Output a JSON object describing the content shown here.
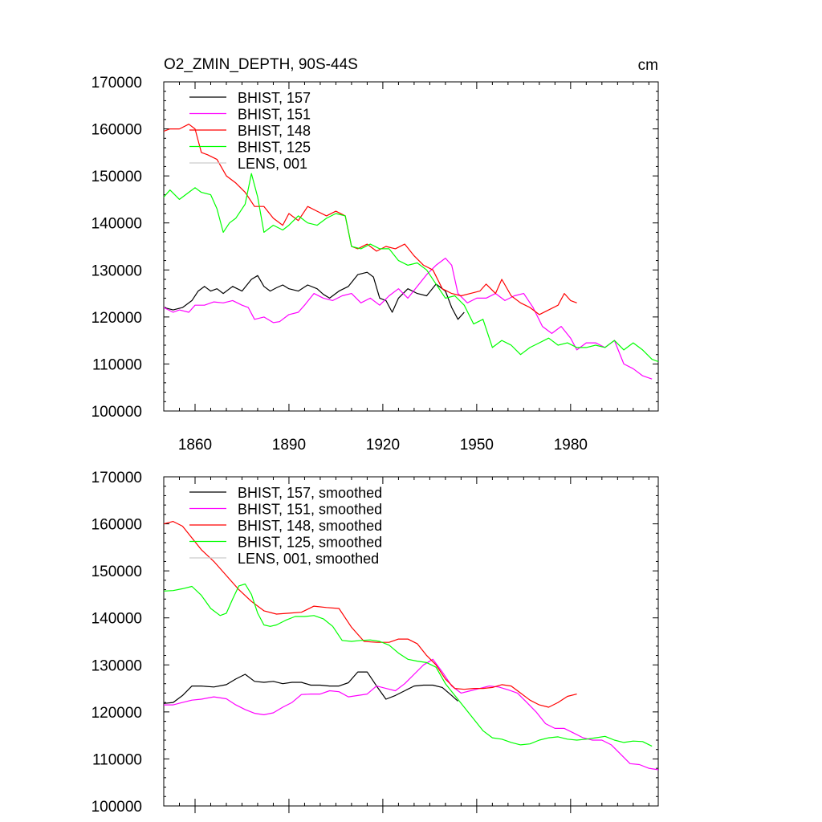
{
  "chart_data": [
    {
      "type": "line",
      "title": "O2_ZMIN_DEPTH, 90S-44S",
      "units": "cm",
      "xlim": [
        1850,
        2008
      ],
      "ylim": [
        100000,
        170000
      ],
      "yticks": [
        100000,
        110000,
        120000,
        130000,
        140000,
        150000,
        160000,
        170000
      ],
      "ytick_labels": [
        "100000",
        "110000",
        "120000",
        "130000",
        "140000",
        "150000",
        "160000",
        "170000"
      ],
      "xticks": [
        1860,
        1890,
        1920,
        1950,
        1980
      ],
      "xtick_labels": [
        "1860",
        "1890",
        "1920",
        "1950",
        "1980"
      ],
      "series": [
        {
          "name": "BHIST, 157",
          "color": "#000000",
          "x": [
            1850,
            1853,
            1856,
            1859,
            1861,
            1863,
            1865,
            1867,
            1869,
            1872,
            1875,
            1878,
            1880,
            1882,
            1884,
            1886,
            1888,
            1890,
            1893,
            1896,
            1899,
            1901,
            1903,
            1906,
            1909,
            1912,
            1915,
            1917,
            1919,
            1921,
            1923,
            1925,
            1928,
            1931,
            1934,
            1937,
            1940,
            1942,
            1944,
            1946
          ],
          "y": [
            122000,
            121500,
            122000,
            123500,
            125500,
            126500,
            125500,
            126000,
            125000,
            126500,
            125500,
            128000,
            128800,
            126500,
            125500,
            126200,
            126800,
            126000,
            125500,
            126800,
            126000,
            124800,
            124000,
            125500,
            126500,
            129000,
            129500,
            128500,
            124000,
            123500,
            121000,
            124000,
            126000,
            125000,
            124500,
            127000,
            125500,
            122000,
            119500,
            121000
          ]
        },
        {
          "name": "BHIST, 151",
          "color": "#ff00ff",
          "x": [
            1850,
            1853,
            1855,
            1858,
            1860,
            1863,
            1866,
            1869,
            1872,
            1875,
            1877,
            1879,
            1882,
            1885,
            1887,
            1890,
            1893,
            1895,
            1898,
            1901,
            1904,
            1907,
            1910,
            1913,
            1916,
            1919,
            1922,
            1925,
            1928,
            1931,
            1934,
            1937,
            1940,
            1942,
            1944,
            1947,
            1950,
            1953,
            1956,
            1959,
            1962,
            1965,
            1968,
            1971,
            1974,
            1977,
            1980,
            1982,
            1985,
            1988,
            1991,
            1994,
            1997,
            2000,
            2003,
            2006
          ],
          "y": [
            122000,
            121000,
            121500,
            121000,
            122500,
            122500,
            123200,
            123000,
            123500,
            122500,
            122000,
            119500,
            120000,
            118800,
            119000,
            120500,
            121000,
            122500,
            125000,
            124000,
            123500,
            124500,
            125000,
            123000,
            124000,
            122500,
            124500,
            126000,
            124000,
            126500,
            129000,
            131000,
            132500,
            131000,
            125000,
            123000,
            124000,
            124000,
            125000,
            123500,
            124500,
            125000,
            122000,
            118000,
            116500,
            118000,
            115500,
            113000,
            114500,
            114500,
            113500,
            115000,
            110000,
            109000,
            107500,
            106800
          ]
        },
        {
          "name": "BHIST, 148",
          "color": "#ff0000",
          "x": [
            1850,
            1852,
            1855,
            1858,
            1860,
            1862,
            1864,
            1867,
            1870,
            1873,
            1876,
            1879,
            1882,
            1885,
            1888,
            1890,
            1893,
            1896,
            1899,
            1902,
            1905,
            1908,
            1910,
            1912,
            1915,
            1918,
            1921,
            1924,
            1927,
            1930,
            1933,
            1936,
            1939,
            1942,
            1945,
            1948,
            1951,
            1953,
            1956,
            1958,
            1961,
            1964,
            1967,
            1970,
            1973,
            1976,
            1978,
            1980,
            1982
          ],
          "y": [
            159500,
            160000,
            160000,
            161000,
            160000,
            155000,
            154500,
            153500,
            150000,
            148500,
            146500,
            143500,
            143500,
            141000,
            139500,
            142000,
            140500,
            143500,
            142500,
            141500,
            142500,
            141500,
            135000,
            134500,
            135500,
            134000,
            135000,
            134500,
            135500,
            133000,
            131000,
            130000,
            126000,
            125000,
            124500,
            125000,
            125500,
            127000,
            125000,
            128000,
            124500,
            123000,
            122000,
            120500,
            121500,
            122500,
            125000,
            123500,
            123000
          ]
        },
        {
          "name": "BHIST, 125",
          "color": "#00ff00",
          "x": [
            1850,
            1852,
            1855,
            1858,
            1860,
            1862,
            1865,
            1867,
            1869,
            1871,
            1873,
            1876,
            1878,
            1880,
            1882,
            1885,
            1888,
            1890,
            1893,
            1896,
            1899,
            1902,
            1905,
            1908,
            1910,
            1913,
            1916,
            1919,
            1922,
            1925,
            1928,
            1931,
            1934,
            1937,
            1940,
            1943,
            1946,
            1949,
            1952,
            1955,
            1958,
            1961,
            1964,
            1967,
            1970,
            1973,
            1976,
            1979,
            1982,
            1985,
            1988,
            1991,
            1994,
            1997,
            2000,
            2003,
            2006,
            2008
          ],
          "y": [
            145500,
            147000,
            145000,
            146500,
            147500,
            146500,
            146000,
            143000,
            138000,
            140000,
            141000,
            144000,
            150500,
            145500,
            138000,
            139500,
            138500,
            139500,
            141500,
            140000,
            139500,
            141000,
            142000,
            141500,
            135000,
            134500,
            135500,
            134500,
            134500,
            132000,
            131000,
            131500,
            130000,
            127000,
            124000,
            124500,
            122500,
            118500,
            119500,
            113500,
            115000,
            114000,
            112000,
            113500,
            114500,
            115500,
            114000,
            114500,
            113500,
            113500,
            114000,
            113500,
            115000,
            113000,
            114500,
            113000,
            111000,
            110500
          ]
        }
      ]
    },
    {
      "type": "line",
      "title": "",
      "xlim": [
        1850,
        2008
      ],
      "ylim": [
        100000,
        170000
      ],
      "yticks": [
        100000,
        110000,
        120000,
        130000,
        140000,
        150000,
        160000,
        170000
      ],
      "ytick_labels": [
        "100000",
        "110000",
        "120000",
        "130000",
        "140000",
        "150000",
        "160000",
        "170000"
      ],
      "xticks": [
        1860,
        1890,
        1920,
        1950,
        1980
      ],
      "series": [
        {
          "name": "BHIST, 157, smoothed",
          "color": "#000000",
          "x": [
            1850,
            1853,
            1856,
            1859,
            1862,
            1866,
            1870,
            1873,
            1876,
            1879,
            1882,
            1885,
            1888,
            1891,
            1894,
            1897,
            1900,
            1903,
            1906,
            1909,
            1912,
            1915,
            1918,
            1921,
            1924,
            1927,
            1930,
            1933,
            1936,
            1939,
            1942,
            1944
          ],
          "y": [
            121800,
            122000,
            123500,
            125500,
            125500,
            125300,
            125800,
            127000,
            128000,
            126500,
            126300,
            126500,
            126000,
            126300,
            126300,
            125700,
            125700,
            125500,
            125500,
            126200,
            128500,
            128500,
            125500,
            122700,
            123500,
            124500,
            125500,
            125700,
            125700,
            125200,
            123500,
            122300
          ]
        },
        {
          "name": "BHIST, 151, smoothed",
          "color": "#ff00ff",
          "x": [
            1850,
            1853,
            1856,
            1859,
            1862,
            1866,
            1870,
            1873,
            1876,
            1879,
            1882,
            1885,
            1888,
            1891,
            1894,
            1897,
            1900,
            1903,
            1906,
            1909,
            1912,
            1915,
            1918,
            1921,
            1924,
            1927,
            1930,
            1933,
            1936,
            1939,
            1942,
            1945,
            1948,
            1951,
            1954,
            1957,
            1960,
            1963,
            1966,
            1969,
            1972,
            1975,
            1978,
            1981,
            1984,
            1987,
            1990,
            1993,
            1996,
            1999,
            2002,
            2005,
            2008
          ],
          "y": [
            121500,
            121500,
            122000,
            122500,
            122700,
            123200,
            122800,
            121500,
            120500,
            119700,
            119400,
            119800,
            121000,
            122000,
            123700,
            123800,
            123800,
            124500,
            124300,
            123200,
            123500,
            123800,
            125500,
            125000,
            124500,
            126000,
            128000,
            130000,
            131200,
            128500,
            125500,
            124000,
            124500,
            125000,
            125500,
            125300,
            124700,
            124000,
            122000,
            120000,
            117500,
            116500,
            116500,
            115500,
            114500,
            114000,
            114000,
            113000,
            111000,
            109000,
            108800,
            108000,
            107700
          ]
        },
        {
          "name": "BHIST, 148, smoothed",
          "color": "#ff0000",
          "x": [
            1850,
            1853,
            1856,
            1859,
            1862,
            1866,
            1870,
            1874,
            1878,
            1882,
            1886,
            1890,
            1894,
            1898,
            1902,
            1906,
            1910,
            1914,
            1918,
            1922,
            1925,
            1928,
            1931,
            1934,
            1937,
            1940,
            1943,
            1946,
            1949,
            1952,
            1955,
            1958,
            1961,
            1964,
            1967,
            1970,
            1973,
            1976,
            1979,
            1982
          ],
          "y": [
            160000,
            160500,
            159500,
            157000,
            154500,
            152000,
            149000,
            146000,
            143500,
            141500,
            140800,
            141000,
            141200,
            142500,
            142200,
            142000,
            138000,
            135000,
            134800,
            134800,
            135500,
            135500,
            134500,
            132000,
            130000,
            127000,
            125000,
            124800,
            125000,
            125000,
            125200,
            125800,
            125500,
            124000,
            122500,
            121500,
            121000,
            122000,
            123300,
            123800
          ]
        },
        {
          "name": "BHIST, 125, smoothed",
          "color": "#00ff00",
          "x": [
            1850,
            1853,
            1856,
            1859,
            1862,
            1865,
            1868,
            1870,
            1872,
            1874,
            1876,
            1878,
            1880,
            1882,
            1884,
            1886,
            1889,
            1892,
            1895,
            1898,
            1901,
            1904,
            1907,
            1910,
            1913,
            1916,
            1919,
            1922,
            1925,
            1928,
            1931,
            1934,
            1937,
            1940,
            1943,
            1946,
            1949,
            1952,
            1955,
            1958,
            1961,
            1964,
            1967,
            1970,
            1973,
            1976,
            1979,
            1982,
            1985,
            1988,
            1991,
            1994,
            1997,
            2000,
            2003,
            2006
          ],
          "y": [
            145700,
            145800,
            146200,
            146700,
            144800,
            142000,
            140500,
            141000,
            144000,
            146800,
            147200,
            145000,
            141000,
            138500,
            138200,
            138500,
            139500,
            140300,
            140300,
            140500,
            139800,
            138200,
            135200,
            135000,
            135200,
            135300,
            135000,
            134200,
            132500,
            131200,
            130800,
            130500,
            129500,
            126000,
            123500,
            121000,
            118500,
            116000,
            114500,
            114200,
            113500,
            113000,
            113200,
            114000,
            114500,
            114700,
            114200,
            114000,
            114200,
            114500,
            114800,
            114000,
            113500,
            113800,
            113700,
            112700
          ]
        }
      ]
    }
  ]
}
